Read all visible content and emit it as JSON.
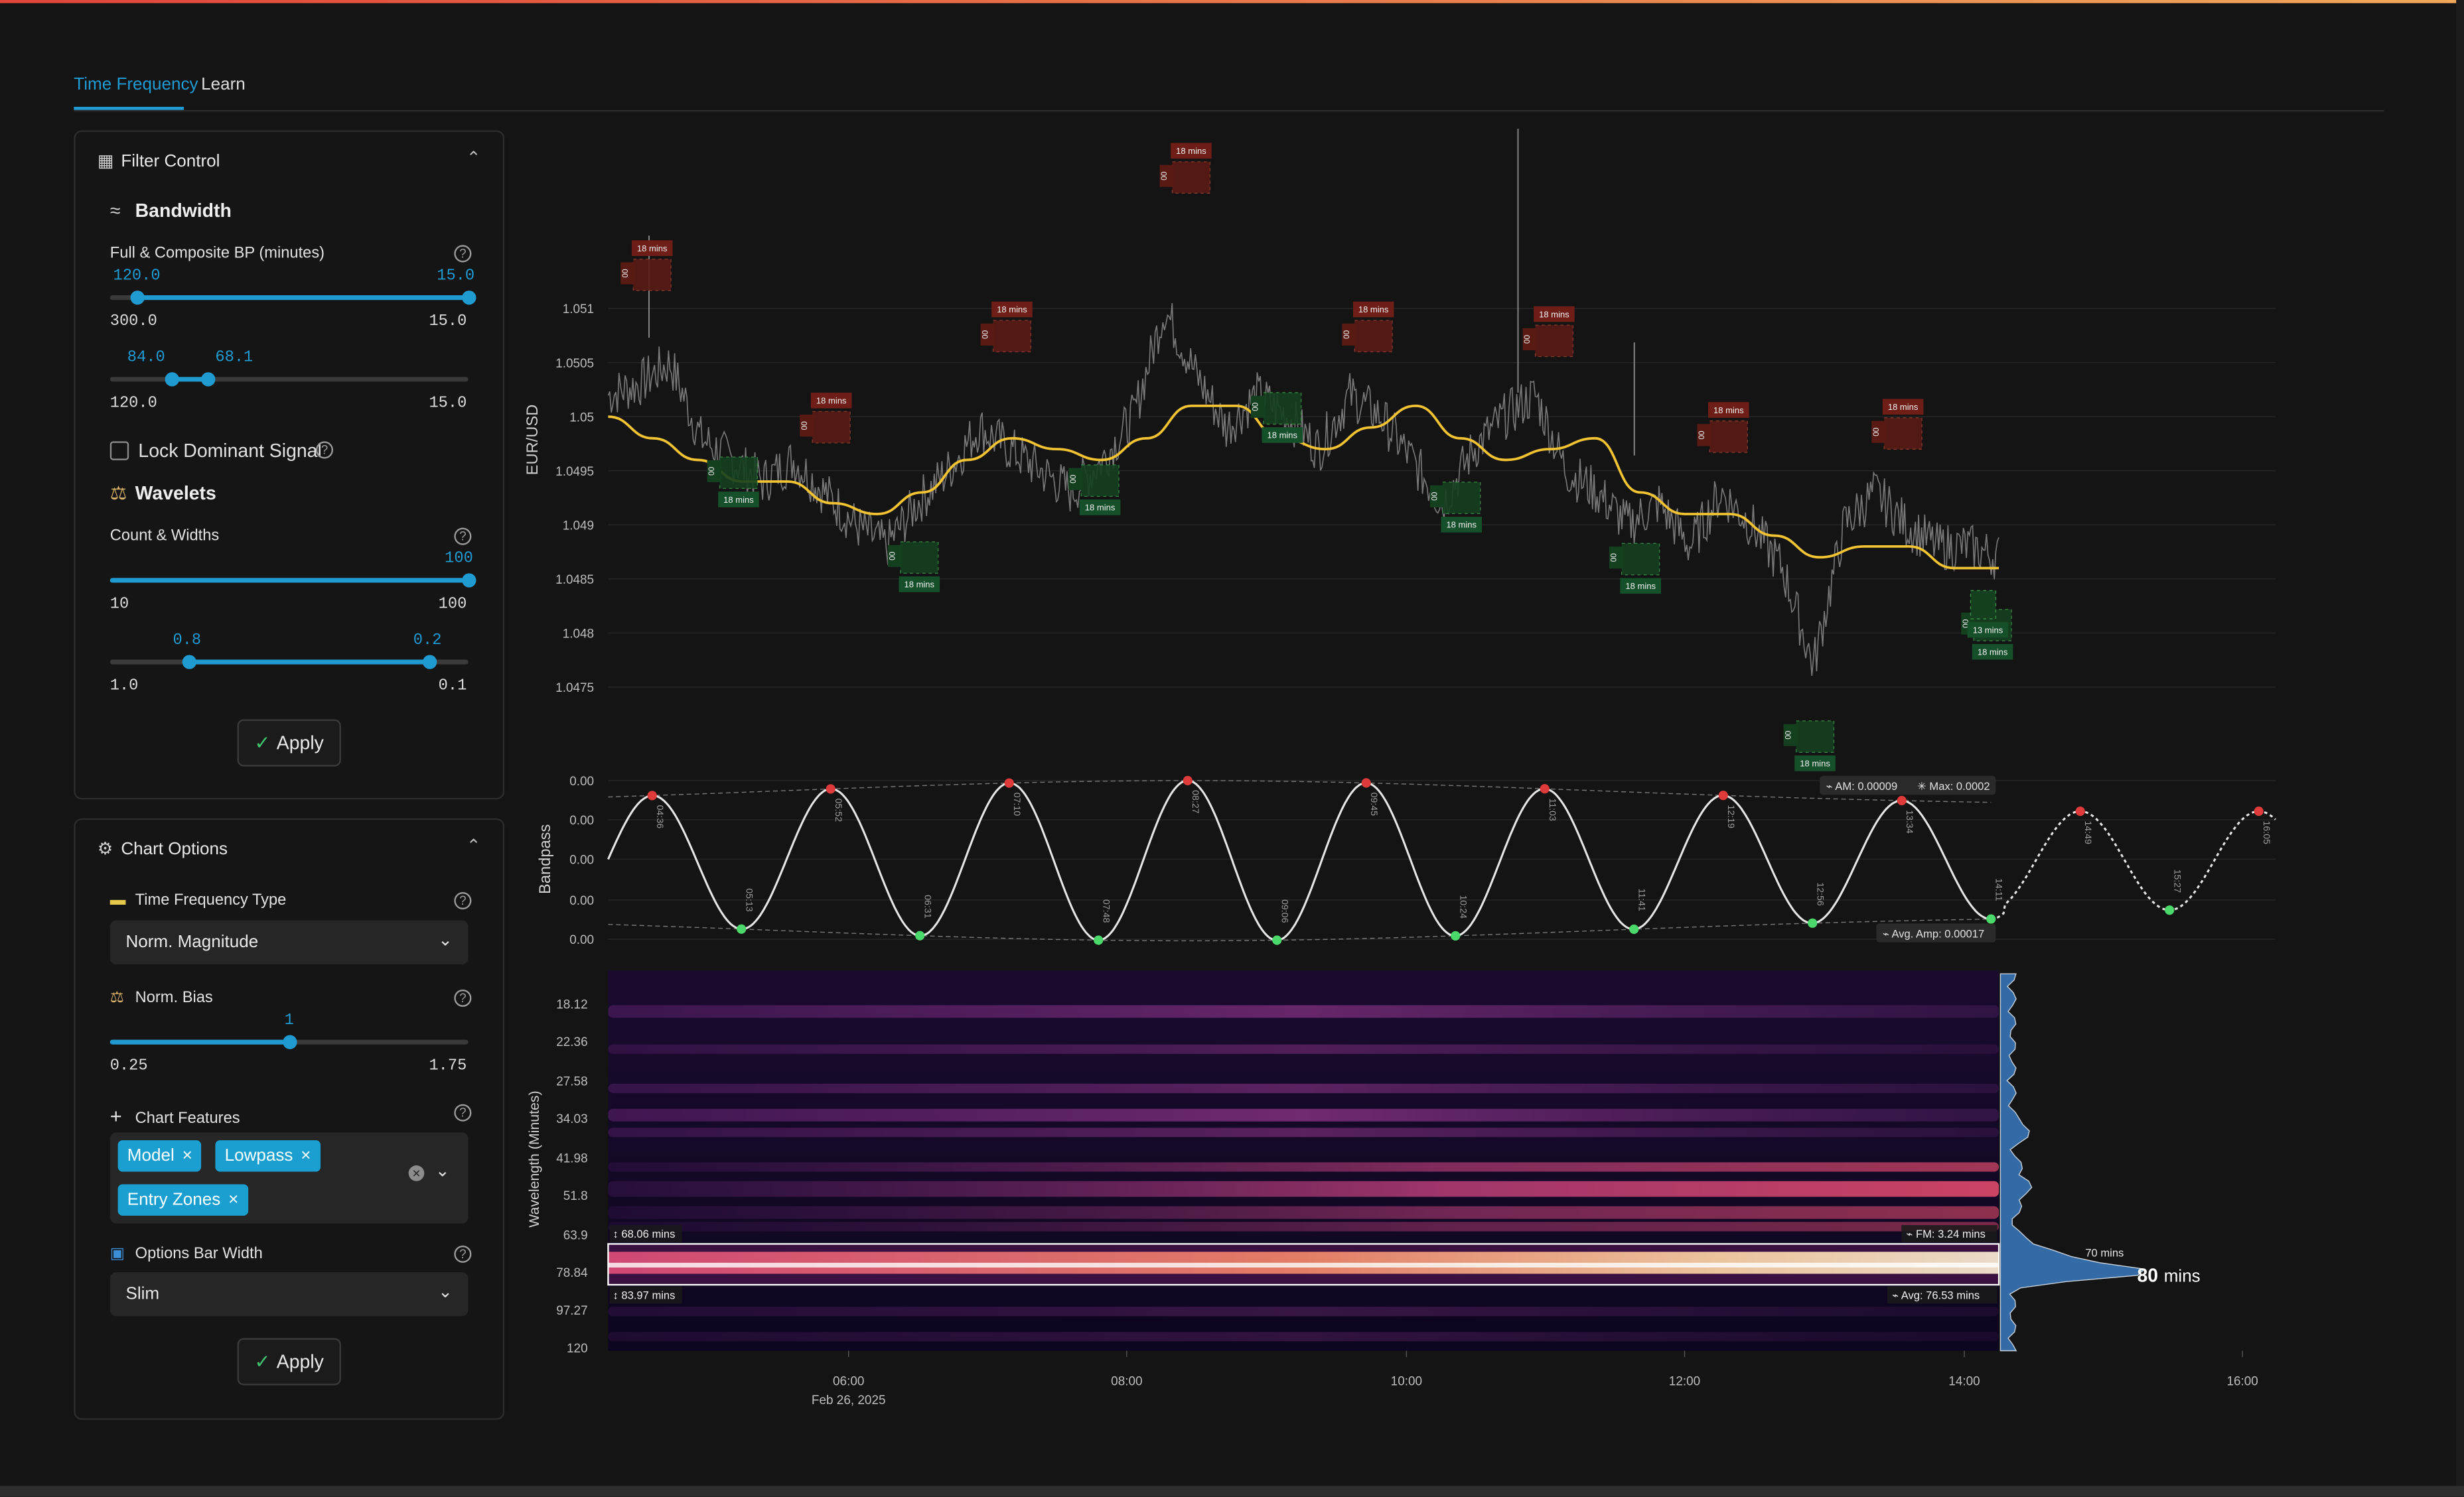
{
  "tabs": [
    {
      "label": "Time Frequency"
    },
    {
      "label": "Learn"
    }
  ],
  "filter_control": {
    "title": "Filter Control",
    "bandwidth": {
      "title": "Bandwidth",
      "full_label": "Full & Composite BP (minutes)",
      "slider1": {
        "low_val": "120.0",
        "high_val": "15.0",
        "range_min": "300.0",
        "range_max": "15.0"
      },
      "slider2": {
        "low_val": "84.0",
        "high_val": "68.1",
        "range_min": "120.0",
        "range_max": "15.0"
      }
    },
    "lock_label": "Lock Dominant Signal",
    "lock_checked": false,
    "wavelets": {
      "title": "Wavelets",
      "count_label": "Count & Widths",
      "slider1": {
        "val": "100",
        "range_min": "10",
        "range_max": "100"
      },
      "slider2": {
        "low_val": "0.8",
        "high_val": "0.2",
        "range_min": "1.0",
        "range_max": "0.1"
      }
    },
    "apply": "Apply"
  },
  "chart_options": {
    "title": "Chart Options",
    "tf_type_label": "Time Frequency Type",
    "tf_type_value": "Norm. Magnitude",
    "norm_bias_label": "Norm. Bias",
    "norm_bias": {
      "val": "1",
      "range_min": "0.25",
      "range_max": "1.75"
    },
    "features_label": "Chart Features",
    "features": [
      "Model",
      "Lowpass",
      "Entry Zones"
    ],
    "bar_width_label": "Options Bar Width",
    "bar_width_value": "Slim",
    "apply": "Apply"
  },
  "colors": {
    "accent": "#1f9bd1",
    "price": "#8a8a8a",
    "lowpass": "#f1c232",
    "peak": "#e03b3b",
    "trough": "#4cd96b",
    "sell_zone": "#5a1a14",
    "buy_zone": "#14401f"
  },
  "chart_data": [
    {
      "type": "line",
      "ylabel": "EUR/USD",
      "y_ticks": [
        "1.051",
        "1.0505",
        "1.05",
        "1.0495",
        "1.049",
        "1.0485",
        "1.048",
        "1.0475"
      ],
      "ylim": [
        1.0471,
        1.0524
      ],
      "series": [
        {
          "values": [
            1.0502,
            1.0503,
            1.0505,
            1.0498,
            1.0496,
            1.0494,
            1.0496,
            1.0493,
            1.049,
            1.0488,
            1.0492,
            1.0495,
            1.0499,
            1.0497,
            1.0495,
            1.0493,
            1.0496,
            1.05,
            1.051,
            1.0504,
            1.0499,
            1.0502,
            1.05,
            1.0497,
            1.0502,
            1.05,
            1.0496,
            1.0492,
            1.0497,
            1.05,
            1.0502,
            1.0495,
            1.0493,
            1.049,
            1.0492,
            1.0488,
            1.0493,
            1.049,
            1.0486,
            1.0477,
            1.049,
            1.0493,
            1.049,
            1.0488,
            1.0488,
            1.0487
          ]
        },
        {
          "values": [
            1.05,
            1.0498,
            1.0496,
            1.0494,
            1.0494,
            1.0492,
            1.0491,
            1.0493,
            1.0496,
            1.0498,
            1.0497,
            1.0496,
            1.0498,
            1.0501,
            1.0501,
            1.0498,
            1.0497,
            1.0499,
            1.0501,
            1.0498,
            1.0496,
            1.0497,
            1.0498,
            1.0493,
            1.0491,
            1.0491,
            1.0489,
            1.0487,
            1.0488,
            1.0488,
            1.0486,
            1.0486
          ]
        }
      ],
      "zones": [
        {
          "kind": "sell",
          "label": "18 mins"
        },
        {
          "kind": "buy",
          "label": "18 mins"
        },
        {
          "kind": "sell",
          "label": "18 mins"
        },
        {
          "kind": "buy",
          "label": "18 mins"
        },
        {
          "kind": "sell",
          "label": "18 mins"
        },
        {
          "kind": "buy",
          "label": "18 mins"
        },
        {
          "kind": "sell",
          "label": "18 mins"
        },
        {
          "kind": "buy",
          "label": "18 mins"
        },
        {
          "kind": "sell",
          "label": "18 mins"
        },
        {
          "kind": "buy",
          "label": "18 mins"
        },
        {
          "kind": "sell",
          "label": "18 mins"
        },
        {
          "kind": "buy",
          "label": "18 mins"
        },
        {
          "kind": "sell",
          "label": "18 mins"
        },
        {
          "kind": "buy",
          "label": "18 mins"
        },
        {
          "kind": "sell",
          "label": "18 mins"
        },
        {
          "kind": "buy",
          "label": "18 mins"
        },
        {
          "kind": "sell",
          "label": "18 mins"
        },
        {
          "kind": "buy",
          "label": "13 mins"
        }
      ],
      "zone_tag": "00"
    },
    {
      "type": "line",
      "ylabel": "Bandpass",
      "y_ticks": [
        "0.00",
        "0.00",
        "0.00",
        "0.00",
        "0.00"
      ],
      "events": [
        {
          "kind": "peak",
          "label": "04:36"
        },
        {
          "kind": "trough",
          "label": "05:13"
        },
        {
          "kind": "peak",
          "label": "05:52"
        },
        {
          "kind": "trough",
          "label": "06:31"
        },
        {
          "kind": "peak",
          "label": "07:10"
        },
        {
          "kind": "trough",
          "label": "07:48"
        },
        {
          "kind": "peak",
          "label": "08:27"
        },
        {
          "kind": "trough",
          "label": "09:06"
        },
        {
          "kind": "peak",
          "label": "09:45"
        },
        {
          "kind": "trough",
          "label": "10:24"
        },
        {
          "kind": "peak",
          "label": "11:03"
        },
        {
          "kind": "trough",
          "label": "11:41"
        },
        {
          "kind": "peak",
          "label": "12:19"
        },
        {
          "kind": "trough",
          "label": "12:56"
        },
        {
          "kind": "peak",
          "label": "13:34"
        },
        {
          "kind": "trough",
          "label": "14:11"
        },
        {
          "kind": "peak",
          "label": "14:49"
        },
        {
          "kind": "trough",
          "label": "15:27"
        },
        {
          "kind": "peak",
          "label": "16:05"
        }
      ],
      "am_label": "AM: 0.00009",
      "max_label": "Max: 0.0002",
      "avg_amp_label": "Avg. Amp: 0.00017"
    },
    {
      "type": "heatmap",
      "ylabel": "Wavelength (Minutes)",
      "y_ticks": [
        "18.12",
        "22.36",
        "27.58",
        "34.03",
        "41.98",
        "51.8",
        "63.9",
        "78.84",
        "97.27",
        "120"
      ],
      "x_ticks": [
        "06:00",
        "08:00",
        "10:00",
        "12:00",
        "14:00",
        "16:00"
      ],
      "x_date": "Feb 26, 2025",
      "band_top_label": "68.06 mins",
      "band_bottom_label": "83.97 mins",
      "fm_label": "FM: 3.24 mins",
      "avg_label": "Avg: 76.53 mins",
      "peak_small_label": "70 mins",
      "peak_label": "80",
      "peak_unit": "mins"
    }
  ]
}
